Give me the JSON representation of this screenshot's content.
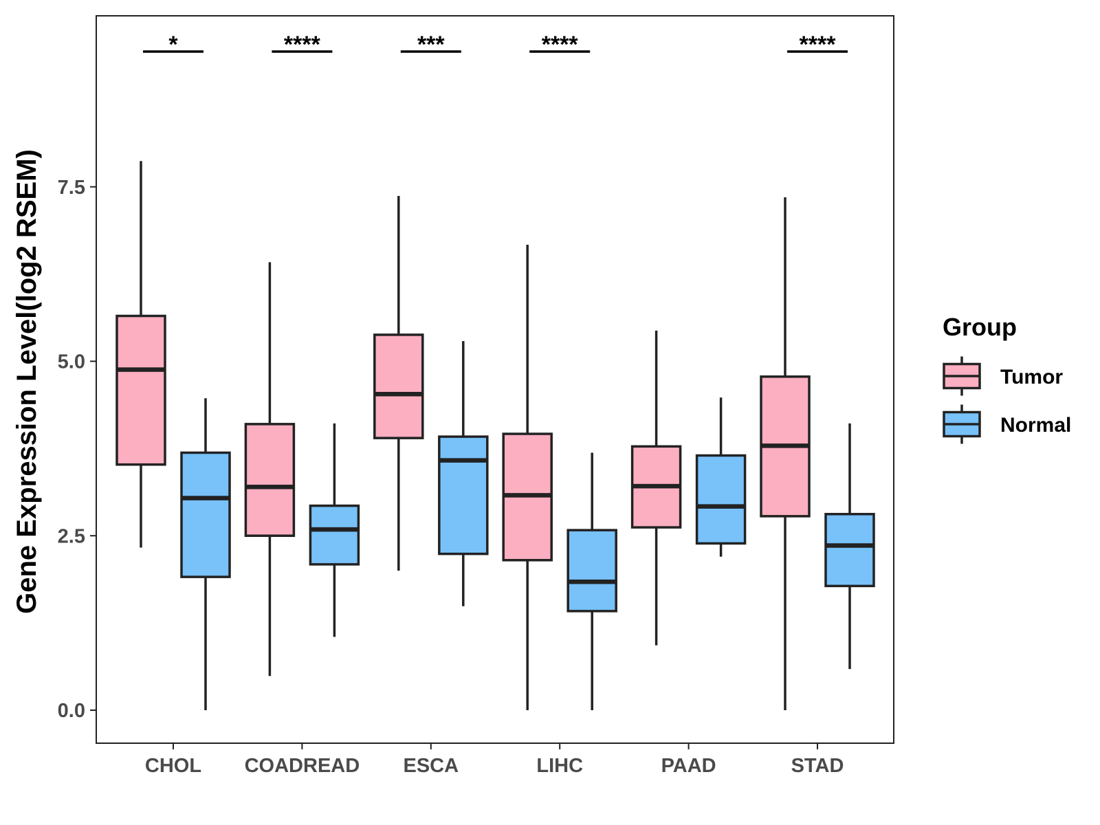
{
  "chart_data": {
    "type": "boxplot",
    "title": "",
    "xlabel": "",
    "ylabel": "Gene Expression Level(log2 RSEM)",
    "ylim": [
      -0.45,
      10.0
    ],
    "yticks": [
      0.0,
      2.5,
      5.0,
      7.5
    ],
    "ytick_labels": [
      "0.0",
      "2.5",
      "5.0",
      "7.5"
    ],
    "grid": false,
    "categories": [
      "CHOL",
      "COADREAD",
      "ESCA",
      "LIHC",
      "PAAD",
      "STAD"
    ],
    "legend": {
      "title": "Group",
      "position": "right",
      "entries": [
        "Tumor",
        "Normal"
      ]
    },
    "series": [
      {
        "name": "Tumor",
        "color": "#FBAFC1",
        "boxes": [
          {
            "whisker_low": 2.33,
            "q1": 3.52,
            "median": 4.88,
            "q3": 5.65,
            "whisker_high": 7.87
          },
          {
            "whisker_low": 0.49,
            "q1": 2.5,
            "median": 3.2,
            "q3": 4.1,
            "whisker_high": 6.42
          },
          {
            "whisker_low": 2.0,
            "q1": 3.9,
            "median": 4.53,
            "q3": 5.38,
            "whisker_high": 7.37
          },
          {
            "whisker_low": 0.0,
            "q1": 2.15,
            "median": 3.08,
            "q3": 3.96,
            "whisker_high": 6.67
          },
          {
            "whisker_low": 0.93,
            "q1": 2.62,
            "median": 3.21,
            "q3": 3.78,
            "whisker_high": 5.44
          },
          {
            "whisker_low": 0.0,
            "q1": 2.78,
            "median": 3.79,
            "q3": 4.78,
            "whisker_high": 7.35
          }
        ]
      },
      {
        "name": "Normal",
        "color": "#78C1F9",
        "boxes": [
          {
            "whisker_low": 0.0,
            "q1": 1.91,
            "median": 3.04,
            "q3": 3.69,
            "whisker_high": 4.47
          },
          {
            "whisker_low": 1.05,
            "q1": 2.09,
            "median": 2.59,
            "q3": 2.93,
            "whisker_high": 4.11
          },
          {
            "whisker_low": 1.49,
            "q1": 2.24,
            "median": 3.58,
            "q3": 3.92,
            "whisker_high": 5.29
          },
          {
            "whisker_low": 0.0,
            "q1": 1.42,
            "median": 1.84,
            "q3": 2.58,
            "whisker_high": 3.69
          },
          {
            "whisker_low": 2.2,
            "q1": 2.39,
            "median": 2.92,
            "q3": 3.65,
            "whisker_high": 4.48
          },
          {
            "whisker_low": 0.59,
            "q1": 1.78,
            "median": 2.36,
            "q3": 2.81,
            "whisker_high": 4.11
          }
        ]
      }
    ],
    "annotations": [
      {
        "category": "CHOL",
        "label": "*"
      },
      {
        "category": "COADREAD",
        "label": "****"
      },
      {
        "category": "ESCA",
        "label": "***"
      },
      {
        "category": "LIHC",
        "label": "****"
      },
      {
        "category": "PAAD",
        "label": ""
      },
      {
        "category": "STAD",
        "label": "****"
      }
    ],
    "colors": {
      "outline": "#222222",
      "axis": "#222222",
      "tick_text": "#4a4a4a"
    }
  }
}
